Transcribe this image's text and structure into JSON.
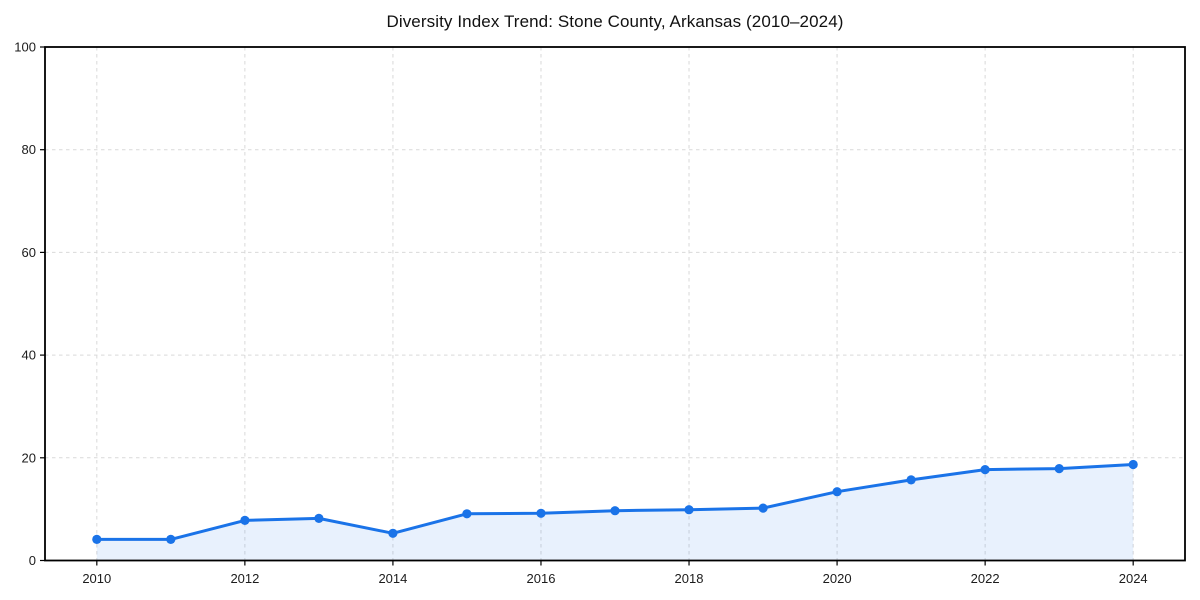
{
  "title": "Diversity Index Trend: Stone County, Arkansas (2010–2024)",
  "colors": {
    "line": "#1a73e8",
    "marker": "#1a73e8",
    "area_fill": "#1a73e8",
    "area_opacity": 0.1,
    "grid": "#d9d9d9",
    "axis": "#000000",
    "tick_label": "#1c1c1c",
    "background": "#ffffff"
  },
  "chart_data": {
    "type": "area",
    "title": "Diversity Index Trend: Stone County, Arkansas (2010–2024)",
    "xlabel": "",
    "ylabel": "",
    "x": [
      2010,
      2011,
      2012,
      2013,
      2014,
      2015,
      2016,
      2017,
      2018,
      2019,
      2020,
      2021,
      2022,
      2023,
      2024
    ],
    "series": [
      {
        "name": "Diversity Index",
        "values": [
          4.1,
          4.1,
          7.8,
          8.2,
          5.3,
          9.1,
          9.2,
          9.7,
          9.9,
          10.2,
          13.4,
          15.7,
          17.7,
          17.9,
          18.7
        ]
      }
    ],
    "xlim": [
      2009.3,
      2024.7
    ],
    "ylim": [
      0,
      100
    ],
    "xticks": [
      2010,
      2012,
      2014,
      2016,
      2018,
      2020,
      2022,
      2024
    ],
    "yticks": [
      0,
      20,
      40,
      60,
      80,
      100
    ],
    "grid": true,
    "grid_style": "dashed",
    "markers": true,
    "legend_position": "none"
  }
}
